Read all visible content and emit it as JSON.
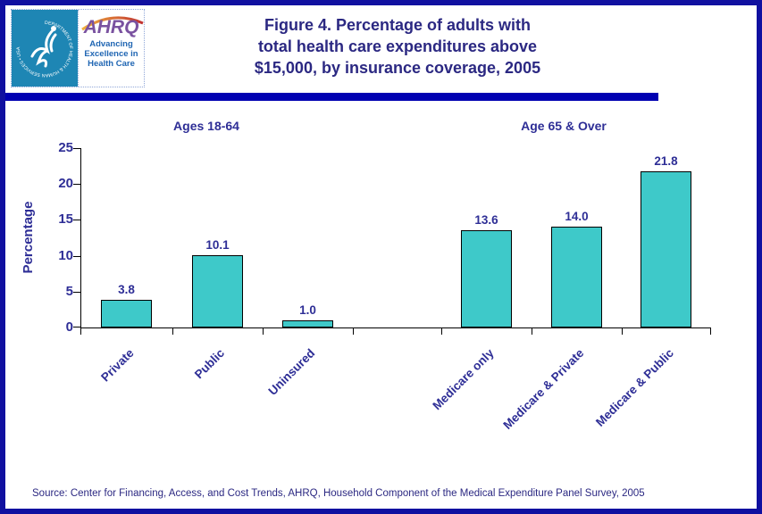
{
  "header": {
    "logo": {
      "seal_text": "DEPARTMENT OF HEALTH & HUMAN SERVICES • USA",
      "ahrq_acronym": "AHRQ",
      "ahrq_tagline_lines": [
        "Advancing",
        "Excellence in",
        "Health Care"
      ]
    },
    "title_lines": [
      "Figure 4. Percentage of adults with",
      "total health care expenditures above",
      "$15,000, by insurance coverage, 2005"
    ]
  },
  "chart_data": {
    "type": "bar",
    "title": "Figure 4. Percentage of adults with total health care expenditures above $15,000, by insurance coverage, 2005",
    "xlabel": "",
    "ylabel": "Percentage",
    "ylim": [
      0,
      25
    ],
    "yticks": [
      0,
      5,
      10,
      15,
      20,
      25
    ],
    "grid": false,
    "legend": "none",
    "bar_color": "#3EC9C9",
    "groups": [
      {
        "label": "Ages 18-64",
        "categories": [
          "Private",
          "Public",
          "Uninsured"
        ],
        "values": [
          3.8,
          10.1,
          1.0
        ],
        "value_labels": [
          "3.8",
          "10.1",
          "1.0"
        ]
      },
      {
        "label": "Age 65 & Over",
        "categories": [
          "Medicare only",
          "Medicare & Private",
          "Medicare & Public"
        ],
        "values": [
          13.6,
          14.0,
          21.8
        ],
        "value_labels": [
          "13.6",
          "14.0",
          "21.8"
        ]
      }
    ]
  },
  "footer": {
    "source": "Source: Center for Financing, Access, and Cost Trends, AHRQ, Household Component of the Medical Expenditure Panel Survey, 2005"
  }
}
